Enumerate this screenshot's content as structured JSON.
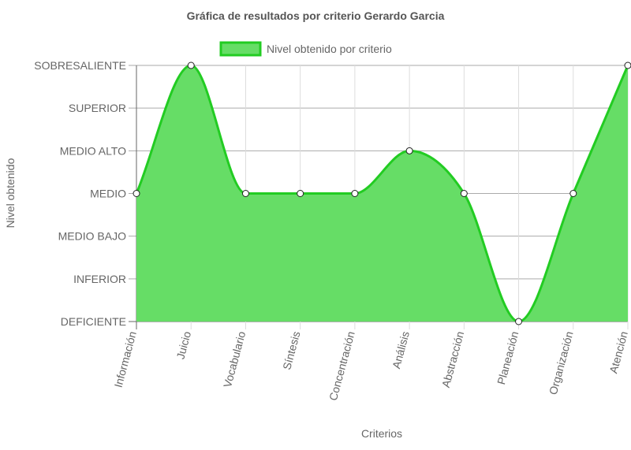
{
  "chart_data": {
    "type": "area",
    "title": "Gráfica de resultados por criterio Gerardo Garcia",
    "xlabel": "Criterios",
    "ylabel": "Nivel obtenido",
    "categories": [
      "Información",
      "Juicio",
      "Vocabulario",
      "Síntesis",
      "Concentración",
      "Análisis",
      "Abstracción",
      "Planeación",
      "Organización",
      "Atención"
    ],
    "y_levels": [
      "DEFICIENTE",
      "INFERIOR",
      "MEDIO BAJO",
      "MEDIO",
      "MEDIO ALTO",
      "SUPERIOR",
      "SOBRESALIENTE"
    ],
    "ylim": [
      0,
      6
    ],
    "series": [
      {
        "name": "Nivel obtenido por criterio",
        "values": [
          3,
          6,
          3,
          3,
          3,
          4,
          3,
          0,
          3,
          6
        ]
      }
    ],
    "grid": true,
    "legend_position": "top",
    "colors": {
      "line": "#22cc22",
      "fill": "#66dd66",
      "grid": "#dddddd",
      "axis": "#666666",
      "text": "#666666",
      "title": "#555555"
    }
  }
}
